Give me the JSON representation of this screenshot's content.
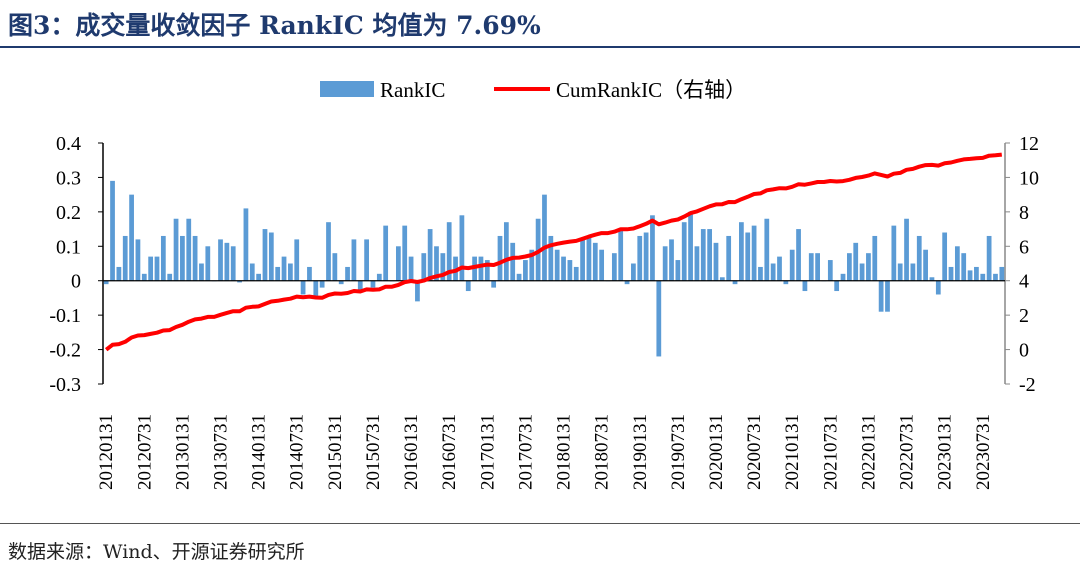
{
  "title": "图3：成交量收敛因子 RankIC 均值为 7.69%",
  "footer": "数据来源：Wind、开源证券研究所",
  "chart_data": {
    "type": "bar+line",
    "title": "图3：成交量收敛因子 RankIC 均值为 7.69%",
    "legend": [
      "RankIC",
      "CumRankIC（右轴）"
    ],
    "legend_placement": "top-center",
    "colors": {
      "bar": "#5b9bd5",
      "line": "#ff0000"
    },
    "left_axis": {
      "ylim": [
        -0.3,
        0.4
      ],
      "ticks": [
        "0.4",
        "0.3",
        "0.2",
        "0.1",
        "0",
        "-0.1",
        "-0.2",
        "-0.3"
      ]
    },
    "right_axis": {
      "ylim": [
        -2,
        12
      ],
      "ticks": [
        "12",
        "10",
        "8",
        "6",
        "4",
        "2",
        "0",
        "-2"
      ]
    },
    "x_tick_labels": [
      "20120131",
      "20120731",
      "20130131",
      "20130731",
      "20140131",
      "20140731",
      "20150131",
      "20150731",
      "20160131",
      "20160731",
      "20170131",
      "20170731",
      "20180131",
      "20180731",
      "20190131",
      "20190731",
      "20200131",
      "20200731",
      "20210131",
      "20210731",
      "20220131",
      "20220731",
      "20230131",
      "20230731"
    ],
    "rankic": [
      -0.01,
      0.29,
      0.04,
      0.13,
      0.25,
      0.12,
      0.02,
      0.07,
      0.07,
      0.13,
      0.02,
      0.18,
      0.13,
      0.18,
      0.13,
      0.05,
      0.1,
      0.0,
      0.12,
      0.11,
      0.1,
      -0.005,
      0.21,
      0.05,
      0.02,
      0.15,
      0.14,
      0.04,
      0.07,
      0.05,
      0.12,
      -0.04,
      0.04,
      -0.05,
      -0.02,
      0.17,
      0.08,
      -0.01,
      0.04,
      0.12,
      -0.03,
      0.12,
      -0.02,
      0.02,
      0.16,
      0.0,
      0.1,
      0.16,
      0.07,
      -0.06,
      0.08,
      0.15,
      0.1,
      0.08,
      0.17,
      0.07,
      0.19,
      -0.03,
      0.07,
      0.07,
      0.06,
      -0.02,
      0.13,
      0.17,
      0.11,
      0.02,
      0.06,
      0.09,
      0.18,
      0.25,
      0.13,
      0.09,
      0.07,
      0.06,
      0.04,
      0.12,
      0.13,
      0.11,
      0.09,
      0.0,
      0.08,
      0.15,
      -0.01,
      0.05,
      0.13,
      0.14,
      0.19,
      -0.22,
      0.1,
      0.12,
      0.06,
      0.17,
      0.2,
      0.1,
      0.15,
      0.15,
      0.11,
      0.01,
      0.13,
      -0.01,
      0.17,
      0.14,
      0.16,
      0.04,
      0.18,
      0.05,
      0.07,
      -0.01,
      0.09,
      0.15,
      -0.03,
      0.08,
      0.08,
      0.0,
      0.06,
      -0.03,
      0.02,
      0.08,
      0.11,
      0.05,
      0.08,
      0.13,
      -0.09,
      -0.09,
      0.16,
      0.05,
      0.18,
      0.05,
      0.13,
      0.09,
      0.01,
      -0.04,
      0.14,
      0.04,
      0.1,
      0.08,
      0.03,
      0.04,
      0.02,
      0.13,
      0.02,
      0.04
    ],
    "cumrankic_note": "cumulative sum of RankIC, ends near 10.9"
  }
}
